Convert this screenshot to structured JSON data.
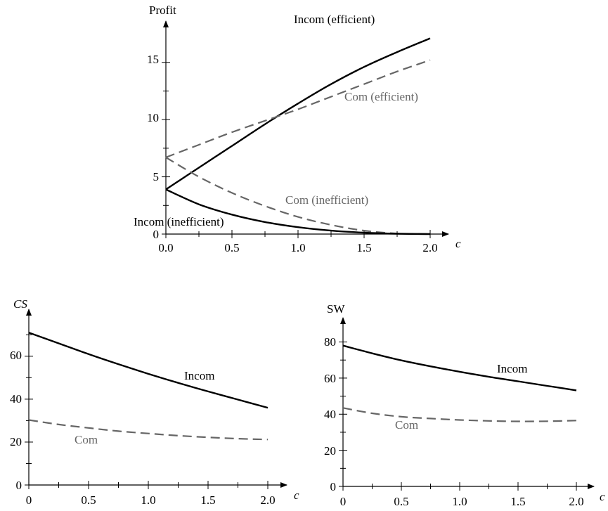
{
  "chart_data": [
    {
      "type": "line",
      "title": "",
      "ylabel": "Profit",
      "xlabel": "c",
      "xlim": [
        0,
        2.0
      ],
      "ylim": [
        0,
        17.5
      ],
      "xticks": [
        "0.0",
        "0.5",
        "1.0",
        "1.5",
        "2.0"
      ],
      "yticks": [
        "0",
        "5",
        "10",
        "15"
      ],
      "x": [
        0,
        0.25,
        0.5,
        0.75,
        1.0,
        1.25,
        1.5,
        1.75,
        2.0
      ],
      "series": [
        {
          "name": "Incom (efficient)",
          "style": "solid",
          "color": "#000000",
          "values": [
            3.9,
            5.8,
            7.7,
            9.6,
            11.4,
            13.1,
            14.6,
            15.9,
            17.1
          ]
        },
        {
          "name": "Com (efficient)",
          "style": "dashed",
          "color": "#666666",
          "values": [
            6.7,
            7.8,
            8.9,
            9.9,
            10.9,
            12.0,
            13.1,
            14.2,
            15.2
          ]
        },
        {
          "name": "Com (inefficient)",
          "style": "dashed",
          "color": "#666666",
          "values": [
            6.7,
            5.0,
            3.6,
            2.45,
            1.5,
            0.8,
            0.3,
            0.05,
            0.0
          ]
        },
        {
          "name": "Incom (inefficient)",
          "style": "solid",
          "color": "#000000",
          "values": [
            3.9,
            2.6,
            1.7,
            1.05,
            0.6,
            0.3,
            0.12,
            0.03,
            0.0
          ]
        }
      ]
    },
    {
      "type": "line",
      "title": "",
      "ylabel": "CS",
      "xlabel": "c",
      "xlim": [
        0,
        2.0
      ],
      "ylim": [
        0,
        76
      ],
      "xticks": [
        "0",
        "0.5",
        "1.0",
        "1.5",
        "2.0"
      ],
      "yticks": [
        "0",
        "20",
        "40",
        "60"
      ],
      "x": [
        0,
        0.25,
        0.5,
        0.75,
        1.0,
        1.25,
        1.5,
        1.75,
        2.0
      ],
      "series": [
        {
          "name": "Incom",
          "style": "solid",
          "color": "#000000",
          "values": [
            71.0,
            66.0,
            61.0,
            56.3,
            51.8,
            47.6,
            43.6,
            39.8,
            36.0
          ]
        },
        {
          "name": "Com",
          "style": "dashed",
          "color": "#666666",
          "values": [
            30.3,
            28.2,
            26.6,
            25.1,
            24.0,
            23.0,
            22.2,
            21.6,
            21.2
          ]
        }
      ]
    },
    {
      "type": "line",
      "title": "",
      "ylabel": "SW",
      "xlabel": "c",
      "xlim": [
        0,
        2.0
      ],
      "ylim": [
        0,
        88
      ],
      "xticks": [
        "0",
        "0.5",
        "1.0",
        "1.5",
        "2.0"
      ],
      "yticks": [
        "0",
        "20",
        "40",
        "60",
        "80"
      ],
      "x": [
        0,
        0.25,
        0.5,
        0.75,
        1.0,
        1.25,
        1.5,
        1.75,
        2.0
      ],
      "series": [
        {
          "name": "Incom",
          "style": "solid",
          "color": "#000000",
          "values": [
            78.0,
            73.7,
            69.8,
            66.5,
            63.5,
            60.7,
            58.2,
            55.7,
            53.2
          ]
        },
        {
          "name": "Com",
          "style": "dashed",
          "color": "#666666",
          "values": [
            43.5,
            40.5,
            38.6,
            37.6,
            36.8,
            36.3,
            36.0,
            36.1,
            36.5
          ]
        }
      ]
    }
  ]
}
